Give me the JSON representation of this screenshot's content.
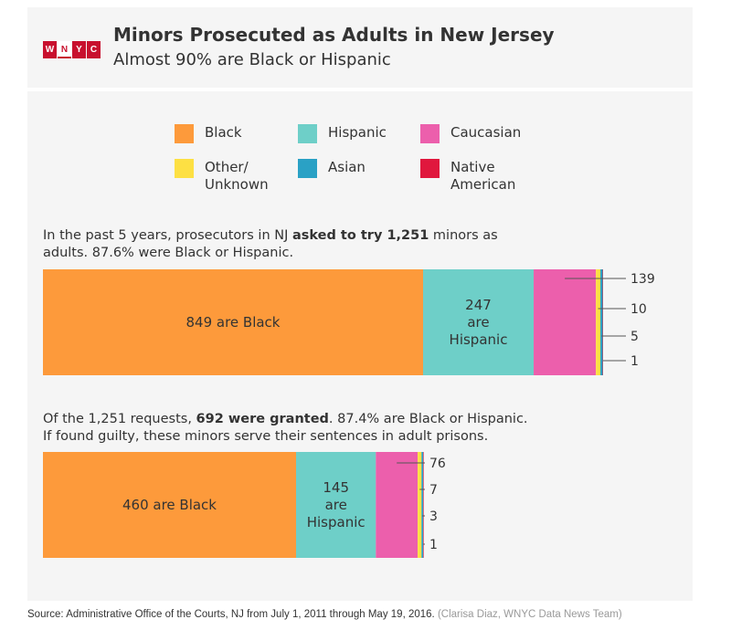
{
  "header": {
    "logo_text": "WNYC",
    "title": "Minors Prosecuted as Adults in New Jersey",
    "subtitle": "Almost 90% are Black or Hispanic"
  },
  "legend": [
    {
      "label": "Black",
      "color": "#fd9a3b"
    },
    {
      "label": "Hispanic",
      "color": "#6ecfc8"
    },
    {
      "label": "Caucasian",
      "color": "#ec5fac"
    },
    {
      "label": "Other/\nUnknown",
      "color": "#fde043"
    },
    {
      "label": "Asian",
      "color": "#2aa1c5"
    },
    {
      "label": "Native\nAmerican",
      "color": "#e0173d"
    }
  ],
  "section1": {
    "text_before": "In the past 5 years, prosecutors in NJ ",
    "text_bold": "asked to try 1,251",
    "text_after": " minors as adults. 87.6% were Black or Hispanic."
  },
  "section2": {
    "text_before": "Of the 1,251 requests, ",
    "text_bold": "692 were granted",
    "text_after": ". 87.4% are Black or Hispanic. If found guilty, these minors serve their sentences in adult prisons."
  },
  "chart_data": [
    {
      "type": "bar",
      "orientation": "horizontal-stacked",
      "total": 1251,
      "series": [
        {
          "name": "Black",
          "value": 849,
          "label": "849 are Black"
        },
        {
          "name": "Hispanic",
          "value": 247,
          "label": "247\nare\nHispanic"
        },
        {
          "name": "Caucasian",
          "value": 139,
          "label": "139"
        },
        {
          "name": "Other/Unknown",
          "value": 10,
          "label": "10"
        },
        {
          "name": "Asian",
          "value": 5,
          "label": "5"
        },
        {
          "name": "Native American",
          "value": 1,
          "label": "1"
        }
      ]
    },
    {
      "type": "bar",
      "orientation": "horizontal-stacked",
      "total": 692,
      "series": [
        {
          "name": "Black",
          "value": 460,
          "label": "460 are Black"
        },
        {
          "name": "Hispanic",
          "value": 145,
          "label": "145\nare\nHispanic"
        },
        {
          "name": "Caucasian",
          "value": 76,
          "label": "76"
        },
        {
          "name": "Other/Unknown",
          "value": 7,
          "label": "7"
        },
        {
          "name": "Asian",
          "value": 3,
          "label": "3"
        },
        {
          "name": "Native American",
          "value": 1,
          "label": "1"
        }
      ]
    }
  ],
  "source": {
    "text": "Source: Administrative Office of the Courts, NJ from July 1, 2011 through May 19, 2016.",
    "credit": "(Clarisa Diaz, WNYC Data News Team)"
  }
}
